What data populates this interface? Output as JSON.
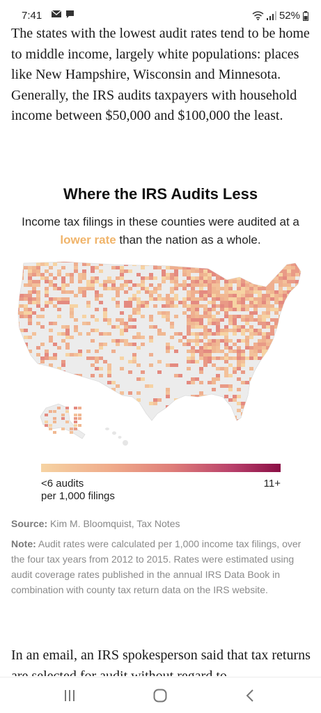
{
  "status_bar": {
    "time": "7:41",
    "battery": "52%",
    "icons": [
      "mail-icon",
      "chat-icon",
      "wifi-icon",
      "signal-icon",
      "battery-icon"
    ]
  },
  "article": {
    "paragraph_1": "The states with the lowest audit rates tend to be home to middle income, largely white populations: places like New Hampshire, Wisconsin and Minnesota. Generally, the IRS audits taxpayers with household income between $50,000 and $100,000 the least.",
    "paragraph_2": "In an email, an IRS spokesperson said that tax returns are selected for audit without regard to"
  },
  "chart": {
    "title": "Where the IRS Audits Less",
    "subtitle_before": "Income tax filings in these counties were audited at a ",
    "subtitle_highlight": "lower rate",
    "subtitle_after": " than the nation as a whole.",
    "legend_low_line1": "<6 audits",
    "legend_low_line2": "per 1,000 filings",
    "legend_high": "11+",
    "source_label": "Source:",
    "source_text": " Kim M. Bloomquist, Tax Notes",
    "note_label": "Note:",
    "note_text": " Audit rates were calculated per 1,000 income tax filings, over the four tax years from 2012 to 2015. Rates were estimated using audit coverage rates published in the annual IRS Data Book in combination with county tax return data on the IRS website.",
    "colors": {
      "highlight": "#f0b46a",
      "scale_low": "#f6d3a3",
      "scale_high": "#8a0e45",
      "land": "#ececec"
    }
  },
  "nav_bar": {
    "buttons": [
      "recent-apps-button",
      "home-button",
      "back-button"
    ]
  }
}
